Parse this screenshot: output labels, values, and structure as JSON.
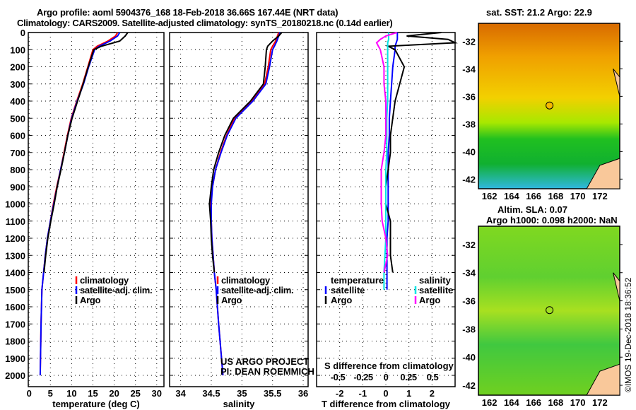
{
  "title": {
    "line1": "Argo profile: aoml 5904376_168 18-Feb-2018 36.66S 167.44E (NRT data)",
    "line2": "Climatology: CARS2009. Satellite-adjusted climatology: synTS_20180218.nc (0.14d earlier)"
  },
  "colors": {
    "clim": "#ff0000",
    "sat": "#0000ff",
    "argo": "#000000",
    "sal_sat": "#00e5e5",
    "sal_argo": "#ff00ff"
  },
  "chart_data": [
    {
      "type": "line",
      "name": "temperature",
      "xlabel": "temperature (deg C)",
      "xlim": [
        -0.2,
        31.7
      ],
      "ylim": [
        2130,
        0
      ],
      "yticks": [
        0,
        100,
        200,
        300,
        400,
        500,
        600,
        700,
        800,
        900,
        1000,
        1100,
        1200,
        1300,
        1400,
        1500,
        1600,
        1700,
        1800,
        1900,
        2000
      ],
      "xticks": [
        0,
        5,
        10,
        15,
        20,
        25,
        30
      ],
      "depth": [
        0,
        20,
        50,
        80,
        100,
        200,
        300,
        400,
        500,
        600,
        700,
        800,
        900,
        1000,
        1100,
        1200,
        1300,
        1400,
        1500,
        1700,
        2000
      ],
      "series": [
        {
          "name": "climatology",
          "values": [
            20.8,
            20.3,
            18.5,
            16,
            15,
            13.8,
            12.6,
            11.2,
            9.9,
            9.0,
            8.2,
            7.4,
            6.5,
            5.7,
            5.0,
            4.3,
            3.8,
            3.4,
            3.0,
            2.8,
            2.6
          ]
        },
        {
          "name": "satellite-adj. clim.",
          "values": [
            21.3,
            20.8,
            19,
            16.5,
            15.4,
            14,
            12.8,
            11.3,
            10,
            9.1,
            8.3,
            7.4,
            6.6,
            5.8,
            5.0,
            4.3,
            3.8,
            3.4,
            3.0,
            2.8,
            2.6
          ]
        },
        {
          "name": "Argo",
          "values": [
            23.2,
            22.6,
            21.3,
            17,
            15.2,
            13.9,
            12.7,
            11.4,
            10.1,
            9.1,
            8.3,
            7.5,
            6.6,
            5.9,
            5.1,
            4.4,
            3.9,
            3.5
          ]
        }
      ],
      "legend": [
        "climatology",
        "satellite-adj. clim.",
        "Argo"
      ]
    },
    {
      "type": "line",
      "name": "salinity",
      "xlabel": "salinity",
      "xlim": [
        33.82,
        36.08
      ],
      "xticks": [
        34,
        34.5,
        35,
        35.5,
        36
      ],
      "depth": [
        0,
        20,
        50,
        80,
        100,
        200,
        300,
        400,
        500,
        600,
        700,
        800,
        900,
        1000,
        1100,
        1200,
        1300,
        1400,
        1500,
        1700,
        2000
      ],
      "series": [
        {
          "name": "climatology",
          "values": [
            35.6,
            35.58,
            35.55,
            35.5,
            35.47,
            35.43,
            35.37,
            35.16,
            34.88,
            34.75,
            34.65,
            34.57,
            34.52,
            34.49,
            34.5,
            34.51,
            34.53,
            34.55,
            34.58,
            34.62,
            34.69
          ]
        },
        {
          "name": "satellite-adj. clim.",
          "values": [
            35.62,
            35.6,
            35.57,
            35.53,
            35.5,
            35.45,
            35.39,
            35.18,
            34.9,
            34.76,
            34.66,
            34.57,
            34.52,
            34.5,
            34.5,
            34.51,
            34.53,
            34.55,
            34.58,
            34.62,
            34.69
          ]
        },
        {
          "name": "Argo",
          "values": [
            35.65,
            35.6,
            35.5,
            35.42,
            35.4,
            35.38,
            35.35,
            35.14,
            34.86,
            34.72,
            34.62,
            34.54,
            34.5,
            34.47,
            34.49,
            34.5,
            34.52,
            34.55
          ]
        }
      ],
      "legend": [
        "climatology",
        "satellite-adj. clim.",
        "Argo"
      ],
      "credit1": "US ARGO PROJECT",
      "credit2": "PI: DEAN ROEMMICH"
    },
    {
      "type": "line",
      "name": "differences",
      "xlabel": "T difference from climatology",
      "xlim": [
        -3,
        3
      ],
      "xticks": [
        -2,
        -1,
        0,
        1,
        2
      ],
      "s_label": "S difference from climatology",
      "s_ticks": [
        "-0.5",
        "-0.25",
        "0",
        "0.25",
        "0.5"
      ],
      "depth": [
        0,
        20,
        40,
        60,
        80,
        100,
        200,
        300,
        400,
        500,
        600,
        700,
        800,
        900,
        1000,
        1100,
        1200,
        1300,
        1400,
        1500
      ],
      "series": [
        {
          "name": "temperature satellite",
          "values": [
            0.5,
            0.5,
            0.5,
            0.45,
            0.4,
            0.4,
            0.3,
            0.25,
            0.2,
            0.15,
            0.15,
            0.1,
            0.1,
            0.1,
            0.1,
            0.1,
            0.05,
            0.05,
            0.05,
            0.05
          ]
        },
        {
          "name": "temperature Argo",
          "values": [
            2.4,
            0.9,
            2.7,
            3,
            0.1,
            0.4,
            0.8,
            0.6,
            0.4,
            0.3,
            0.2,
            0.2,
            0.1,
            0.0,
            0.0,
            0.2,
            0.2,
            0.2,
            0.3
          ]
        },
        {
          "name": "salinity satellite",
          "values": [
            0.03,
            0.03,
            0.03,
            0.02,
            0.02,
            0.02,
            0.02,
            0.02,
            0.02,
            0.01,
            0.01,
            0.01,
            0.0,
            0.0,
            0.0,
            0.0,
            0.0,
            -0.01,
            -0.02,
            -0.02
          ]
        },
        {
          "name": "salinity Argo",
          "values": [
            0.12,
            0.0,
            -0.06,
            -0.1,
            -0.08,
            -0.06,
            -0.02,
            -0.02,
            0.0,
            0.0,
            0.0,
            -0.02,
            -0.05,
            -0.05,
            -0.05,
            -0.04,
            0.0,
            0.02,
            -0.02
          ]
        }
      ],
      "legend_t": {
        "title": "temperature",
        "items": [
          "satellite",
          "Argo"
        ]
      },
      "legend_s": {
        "title": "salinity",
        "items": [
          "satellite",
          "Argo"
        ]
      }
    }
  ],
  "map1": {
    "title": "sat. SST: 21.2 Argo: 22.9",
    "lat_ticks": [
      "-32",
      "-34",
      "-36",
      "-38",
      "-40",
      "-42"
    ],
    "lon_ticks": [
      "162",
      "164",
      "166",
      "168",
      "170",
      "172"
    ]
  },
  "map2": {
    "title1": "Altim. SLA: 0.07",
    "title2": "Argo h1000: 0.098 h2000: NaN",
    "lat_ticks": [
      "-32",
      "-34",
      "-36",
      "-38",
      "-40",
      "-42"
    ],
    "lon_ticks": [
      "162",
      "164",
      "166",
      "168",
      "170",
      "172"
    ]
  },
  "argo_position": {
    "lat": -36.66,
    "lon": 167.44
  },
  "stamp": "©IMOS 19-Dec-2018 18:36:52"
}
